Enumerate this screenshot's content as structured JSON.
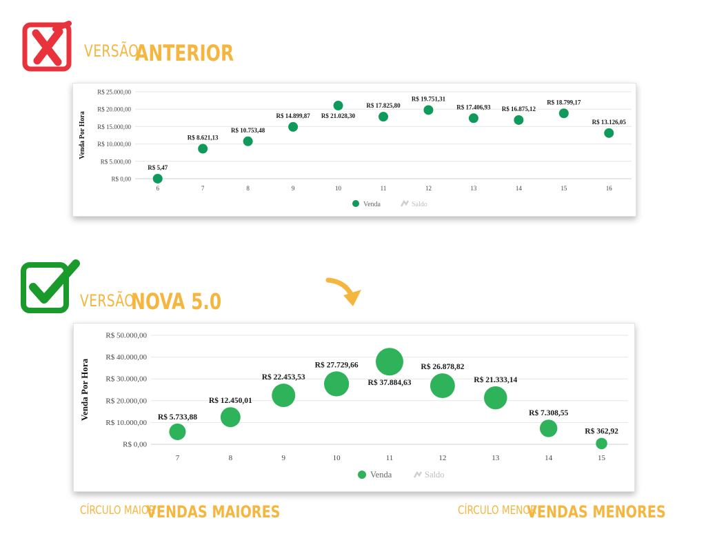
{
  "header_old": {
    "prefix": "VERSÃO",
    "title": "ANTERIOR"
  },
  "header_new": {
    "prefix": "VERSÃO",
    "title": "NOVA 5.0"
  },
  "footer_left": {
    "small": "CÍRCULO MAIOR",
    "big": "VENDAS MAIORES"
  },
  "footer_right": {
    "small": "CÍRCULO MENOR",
    "big": "VENDAS MENORES"
  },
  "colors": {
    "accent": "#f4b63f",
    "wrong": "#e8323c",
    "right": "#1a9a2a",
    "old_point": "#0f9a5c",
    "new_point": "#2fb35a",
    "legend_saldo": "#cfcfcf"
  },
  "chart_data": [
    {
      "type": "scatter",
      "title": "",
      "ylabel": "Venda Por Hora",
      "ylim": [
        0,
        25000
      ],
      "yticks": [
        "R$ 0,00",
        "R$ 5.000,00",
        "R$ 10.000,00",
        "R$ 15.000,00",
        "R$ 20.000,00",
        "R$ 25.000,00"
      ],
      "ytick_values": [
        0,
        5000,
        10000,
        15000,
        20000,
        25000
      ],
      "x": [
        6,
        7,
        8,
        9,
        10,
        11,
        12,
        13,
        14,
        15,
        16
      ],
      "series": [
        {
          "name": "Venda",
          "values": [
            5.47,
            8621.13,
            10753.48,
            14899.87,
            21028.3,
            17825.8,
            19751.31,
            17406.93,
            16875.12,
            18799.17,
            13126.05
          ]
        }
      ],
      "data_labels": [
        "R$ 5,47",
        "R$ 8.621,13",
        "R$ 10.753,48",
        "R$ 14.899,87",
        "R$ 21.028,30",
        "R$ 17.825,80",
        "R$ 19.751,31",
        "R$ 17.406,93",
        "R$ 16.875,12",
        "R$ 18.799,17",
        "R$ 13.126,05"
      ],
      "label_below": [
        false,
        false,
        false,
        false,
        true,
        false,
        false,
        false,
        false,
        false,
        false
      ],
      "legend": [
        "Venda",
        "Saldo"
      ],
      "legend_position": "bottom",
      "grid": true,
      "bubble": false
    },
    {
      "type": "scatter",
      "title": "",
      "ylabel": "Venda Por Hora",
      "ylim": [
        0,
        50000
      ],
      "yticks": [
        "R$ 0,00",
        "R$ 10.000,00",
        "R$ 20.000,00",
        "R$ 30.000,00",
        "R$ 40.000,00",
        "R$ 50.000,00"
      ],
      "ytick_values": [
        0,
        10000,
        20000,
        30000,
        40000,
        50000
      ],
      "x": [
        7,
        8,
        9,
        10,
        11,
        12,
        13,
        14,
        15
      ],
      "series": [
        {
          "name": "Venda",
          "values": [
            5733.88,
            12450.01,
            22453.53,
            27729.66,
            37884.63,
            26878.82,
            21333.14,
            7308.55,
            362.92
          ]
        }
      ],
      "data_labels": [
        "R$ 5.733,88",
        "R$ 12.450,01",
        "R$ 22.453,53",
        "R$ 27.729,66",
        "R$ 37.884,63",
        "R$ 26.878,82",
        "R$ 21.333,14",
        "R$ 7.308,55",
        "R$ 362,92"
      ],
      "label_below": [
        false,
        false,
        false,
        false,
        true,
        false,
        false,
        false,
        false
      ],
      "legend": [
        "Venda",
        "Saldo"
      ],
      "legend_position": "bottom",
      "grid": true,
      "bubble": true
    }
  ]
}
